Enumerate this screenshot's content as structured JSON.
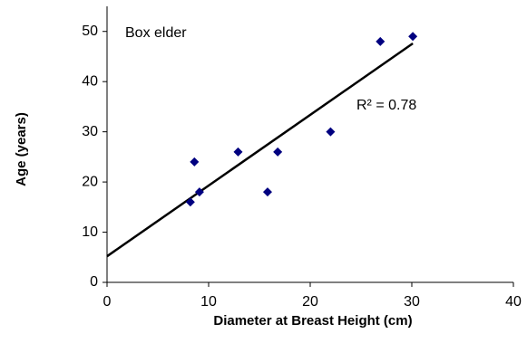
{
  "chart_data": {
    "type": "scatter",
    "x_label": "Diameter at Breast Height (cm)",
    "y_label": "Age (years)",
    "annotations": [
      "Box elder",
      "R² = 0.78"
    ],
    "series": [
      {
        "name": "Box elder",
        "color": "#000080",
        "x": [
          8.2,
          8.6,
          9.1,
          12.9,
          15.8,
          16.8,
          22,
          26.9,
          30.1
        ],
        "values": [
          16,
          24,
          18,
          26,
          18,
          26,
          30,
          48,
          49
        ]
      }
    ],
    "trendline": {
      "x": [
        0,
        30.1
      ],
      "y": [
        5.2,
        47.6
      ],
      "color": "#000000"
    },
    "xlim": [
      0,
      40
    ],
    "xticks": [
      0,
      10,
      20,
      30,
      40
    ],
    "ylim": [
      0,
      55
    ],
    "yticks": [
      0,
      10,
      20,
      30,
      40,
      50
    ],
    "grid": false
  }
}
